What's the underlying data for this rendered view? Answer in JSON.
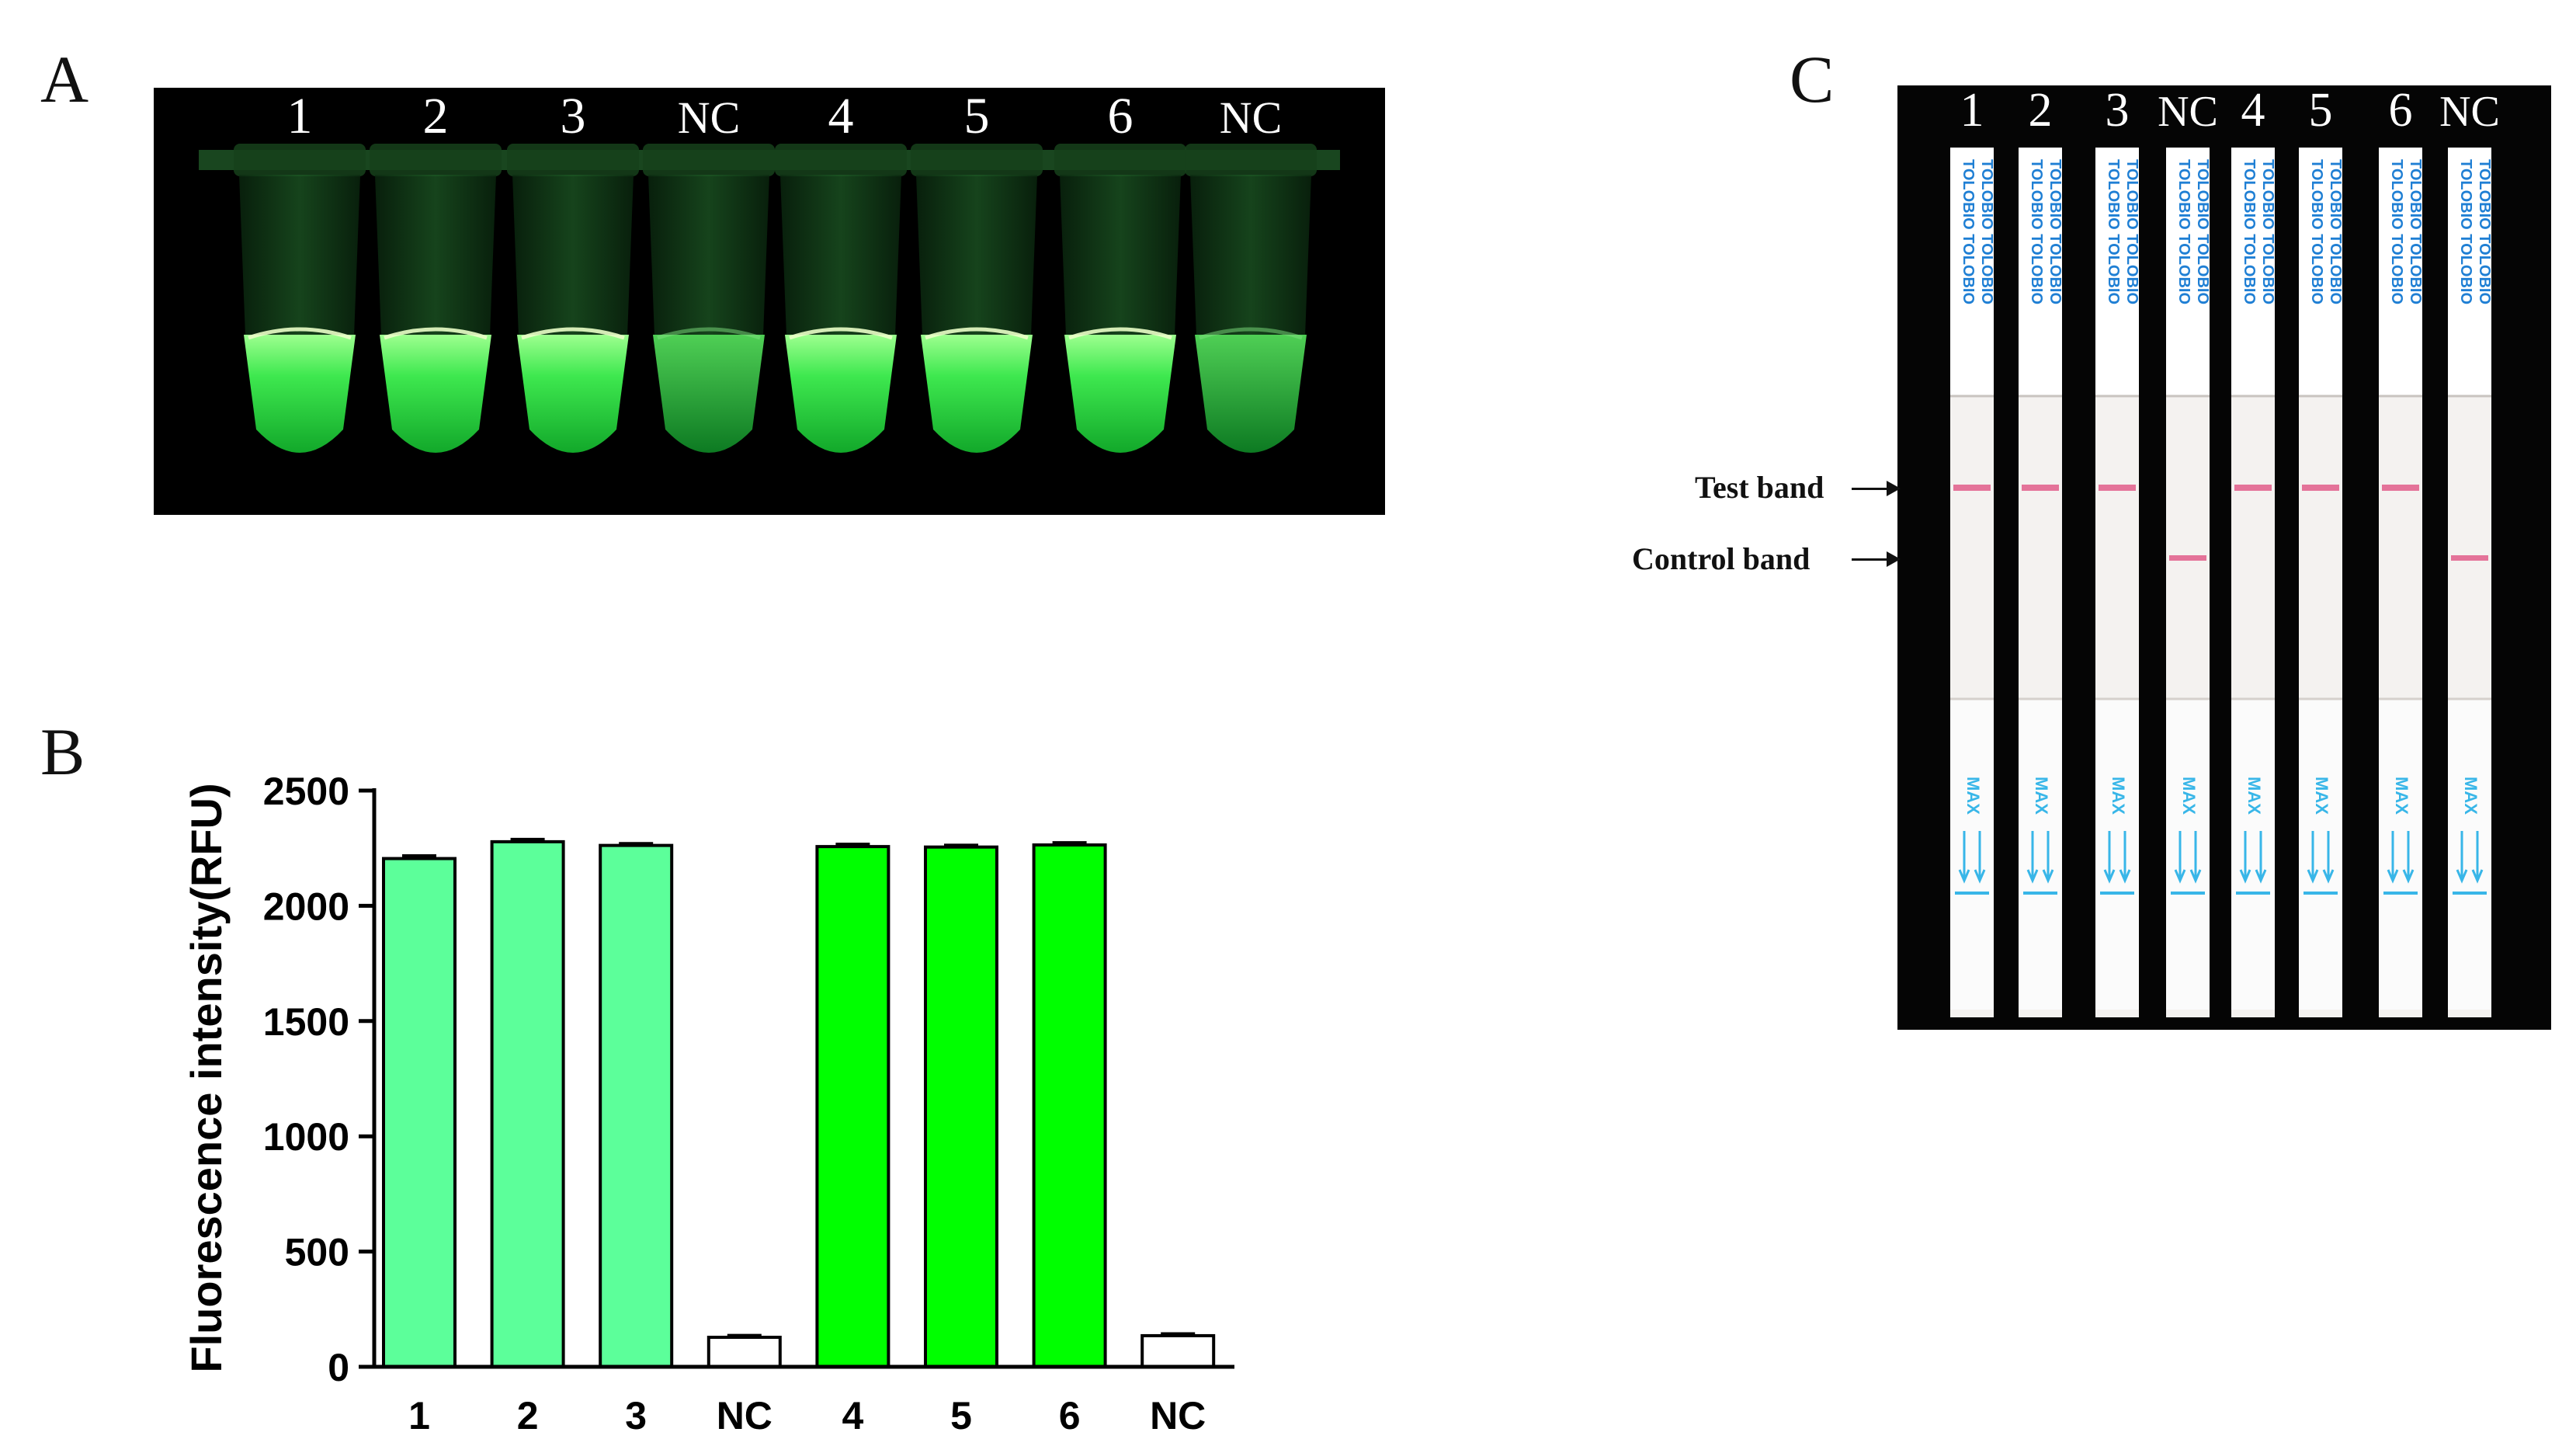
{
  "panels": {
    "a": "A",
    "b": "B",
    "c": "C"
  },
  "tubes": {
    "labels": [
      "1",
      "2",
      "3",
      "NC",
      "4",
      "5",
      "6",
      "NC"
    ],
    "colors": {
      "bright": "#39e85a",
      "dim": "#1f9e34"
    }
  },
  "chart_data": {
    "type": "bar",
    "categories": [
      "1",
      "2",
      "3",
      "NC",
      "4",
      "5",
      "6",
      "NC"
    ],
    "values": [
      2205,
      2278,
      2262,
      128,
      2257,
      2255,
      2264,
      135
    ],
    "errors": [
      12,
      10,
      8,
      8,
      10,
      8,
      10,
      8
    ],
    "ylabel": "Fluorescence intensity(RFU)",
    "ylim": [
      0,
      2500
    ],
    "yticks": [
      0,
      500,
      1000,
      1500,
      2000,
      2500
    ],
    "bar_colors": [
      "#5cff9a",
      "#5cff9a",
      "#5cff9a",
      "#ffffff",
      "#00ff00",
      "#00ff00",
      "#00ff00",
      "#ffffff"
    ]
  },
  "strips": {
    "labels": [
      "1",
      "2",
      "3",
      "NC",
      "4",
      "5",
      "6",
      "NC"
    ],
    "brand": "TOLOBIO",
    "max_text": "MAX",
    "test_band": "Test band",
    "control_band": "Control band",
    "test_present": [
      true,
      true,
      true,
      false,
      true,
      true,
      true,
      false
    ],
    "control_present": [
      false,
      false,
      false,
      true,
      false,
      false,
      false,
      true
    ],
    "band_color": "#e05d8a",
    "print_color": "#1f7fd4"
  }
}
